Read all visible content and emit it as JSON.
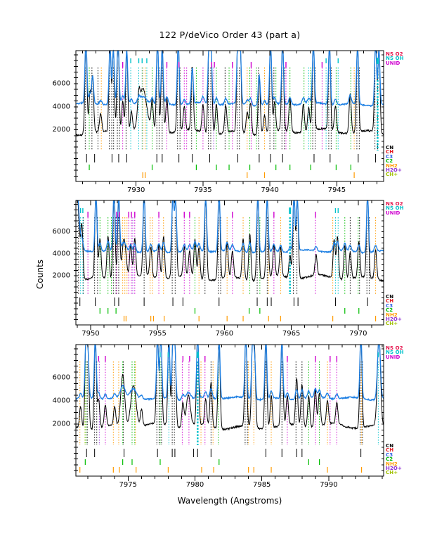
{
  "figure": {
    "title": "122 P/deVico Order 43 (part a)",
    "xlabel": "Wavelength (Angstroms)",
    "ylabel": "Counts"
  },
  "colors": {
    "black_spectrum": "#000000",
    "blue_spectrum": "#1d7fe3",
    "NS_O2": "#e3114a",
    "NS_OH": "#00c2cb",
    "UNID": "#cf00cf",
    "CN": "#000000",
    "CH": "#e31b23",
    "C3": "#2f62e3",
    "C2": "#00bd00",
    "NH2": "#ff9a00",
    "H2O+": "#8f2fd4",
    "CH+": "#a0c000"
  },
  "legend_top": [
    {
      "label": "NS O2",
      "species": "NS_O2"
    },
    {
      "label": "NS OH",
      "species": "NS_OH"
    },
    {
      "label": "UNID",
      "species": "UNID"
    }
  ],
  "legend_bottom": [
    {
      "label": "CN",
      "species": "CN"
    },
    {
      "label": "CH",
      "species": "CH"
    },
    {
      "label": "C3",
      "species": "C3"
    },
    {
      "label": "C2",
      "species": "C2"
    },
    {
      "label": "NH2",
      "species": "NH2"
    },
    {
      "label": "H2O+",
      "species": "H2O+"
    },
    {
      "label": "CH+",
      "species": "CH+"
    }
  ],
  "chart_data": {
    "type": "line",
    "title": "122 P/deVico Order 43 (part a)",
    "xlabel": "Wavelength (Angstroms)",
    "ylabel": "Counts",
    "ylim": [
      -2530,
      8800
    ],
    "y_ticks": [
      2000,
      4000,
      6000
    ],
    "y_minor_step": 500,
    "x_minor_step": 1,
    "baseline_black": 1750,
    "baseline_blue": 4165,
    "panels": [
      {
        "x_range": [
          7925.5,
          7948.5
        ],
        "x_major_ticks": [
          7930,
          7935,
          7940,
          7945
        ],
        "black_peaks": [
          [
            7926.25,
            9800
          ],
          [
            7926.55,
            5200
          ],
          [
            7926.75,
            6500
          ],
          [
            7927.35,
            3300
          ],
          [
            7928.05,
            9300
          ],
          [
            7928.3,
            8800
          ],
          [
            7928.65,
            9800
          ],
          [
            7929.0,
            4600
          ],
          [
            7929.3,
            8800
          ],
          [
            7929.65,
            3600
          ],
          [
            7930.2,
            3400
          ],
          [
            7930.5,
            5300,
            0.28
          ],
          [
            7931.2,
            4200
          ],
          [
            7931.6,
            9500
          ],
          [
            7931.95,
            9000
          ],
          [
            7932.3,
            4700
          ],
          [
            7933.15,
            9600
          ],
          [
            7933.6,
            3800
          ],
          [
            7934.2,
            7200
          ],
          [
            7935.0,
            4200
          ],
          [
            7935.45,
            9300
          ],
          [
            7935.6,
            8800
          ],
          [
            7936.0,
            4400
          ],
          [
            7936.7,
            4100
          ],
          [
            7937.6,
            9600
          ],
          [
            7937.78,
            9200
          ],
          [
            7938.3,
            3600
          ],
          [
            7938.55,
            4500
          ],
          [
            7939.2,
            6800
          ],
          [
            7939.6,
            3400
          ],
          [
            7940.05,
            9500
          ],
          [
            7940.35,
            4200
          ],
          [
            7940.95,
            9400
          ],
          [
            7941.5,
            4600
          ],
          [
            7942.5,
            4200
          ],
          [
            7942.9,
            3800
          ],
          [
            7943.25,
            9500
          ],
          [
            7944.45,
            9300
          ],
          [
            7944.9,
            4000
          ],
          [
            7946.0,
            5200
          ],
          [
            7946.55,
            9200
          ],
          [
            7947.9,
            9700
          ],
          [
            7948.15,
            9000
          ]
        ],
        "lines": {
          "CN": [
            7926.2,
            7926.7,
            7927.15,
            7928.0,
            7928.18,
            7928.32,
            7928.6,
            7928.75,
            7929.25,
            7931.55,
            7931.72,
            7931.95,
            7933.1,
            7933.28,
            7934.15,
            7935.4,
            7935.58,
            7936.65,
            7937.55,
            7937.72,
            7939.15,
            7940.0,
            7940.3,
            7940.9,
            7941.08,
            7943.2,
            7943.38,
            7944.4,
            7944.58,
            7946.5,
            7946.68,
            7947.85,
            7948.05
          ],
          "C2": [
            7926.5,
            7931.2,
            7934.5,
            7936.0,
            7936.95,
            7938.5,
            7939.0,
            7940.45,
            7941.5,
            7942.55,
            7943.05,
            7944.95,
            7946.05
          ],
          "NS_OH": [
            7929.6,
            7930.2,
            7930.45,
            7930.8,
            7942.9,
            7944.2,
            7945.1
          ],
          "NS_OH_thick": [
            7948.05
          ],
          "NH2": [
            7927.4,
            7930.5,
            7930.68,
            7938.3,
            7939.6,
            7946.3
          ],
          "UNID": [
            7929.0,
            7932.3,
            7933.6,
            7933.78,
            7935.0,
            7937.2,
            7938.6,
            7941.2,
            7943.9
          ],
          "H2O+": [
            7935.8
          ]
        },
        "top_marks": {
          "NS_OH": [
            7929.6,
            7930.2,
            7930.45,
            7930.8,
            7944.2,
            7945.1
          ],
          "NS_OH_thick": [
            7948.05
          ],
          "UNID": [
            7929.0,
            7932.3,
            7933.2,
            7935.65,
            7935.85,
            7937.2,
            7938.6,
            7941.2,
            7943.9
          ]
        },
        "bottom_marks": {
          "CN": [
            7926.3,
            7926.9,
            7928.2,
            7928.7,
            7929.3,
            7931.55,
            7931.95,
            7933.2,
            7934.2,
            7935.5,
            7937.6,
            7939.2,
            7940.05,
            7940.95,
            7943.3,
            7944.5,
            7946.6,
            7947.9
          ],
          "C2": [
            7926.5,
            7931.2,
            7934.5,
            7936.0,
            7936.95,
            7938.5,
            7940.45,
            7941.5,
            7943.05,
            7944.95,
            7946.05
          ],
          "NH2": [
            7930.5,
            7930.68,
            7938.3,
            7939.6,
            7946.3
          ]
        }
      },
      {
        "x_range": [
          7948.9,
          7971.9
        ],
        "x_major_ticks": [
          7950,
          7955,
          7960,
          7965,
          7970
        ],
        "black_peaks": [
          [
            7948.95,
            10500,
            0.18
          ],
          [
            7949.35,
            6200
          ],
          [
            7950.4,
            9500
          ],
          [
            7950.7,
            5200
          ],
          [
            7951.3,
            5600
          ],
          [
            7951.75,
            9400
          ],
          [
            7952.1,
            9000
          ],
          [
            7952.5,
            5400,
            0.15
          ],
          [
            7953.0,
            4800
          ],
          [
            7953.3,
            5200
          ],
          [
            7954.0,
            9300
          ],
          [
            7954.5,
            4400
          ],
          [
            7955.1,
            4800
          ],
          [
            7955.45,
            5600
          ],
          [
            7956.15,
            9500
          ],
          [
            7956.35,
            8800
          ],
          [
            7957.0,
            4400
          ],
          [
            7957.4,
            4000
          ],
          [
            7957.8,
            5200
          ],
          [
            7958.1,
            4600
          ],
          [
            7958.6,
            9200
          ],
          [
            7959.6,
            9600
          ],
          [
            7960.2,
            5000
          ],
          [
            7960.6,
            4200
          ],
          [
            7961.4,
            5400
          ],
          [
            7961.9,
            6000
          ],
          [
            7962.5,
            9400
          ],
          [
            7963.2,
            9000
          ],
          [
            7963.7,
            4600
          ],
          [
            7964.2,
            4400
          ],
          [
            7964.9,
            3800
          ],
          [
            7965.2,
            9500
          ],
          [
            7965.45,
            8900
          ],
          [
            7966.85,
            3600
          ],
          [
            7968.2,
            5200
          ],
          [
            7968.45,
            5600
          ],
          [
            7969.0,
            4800
          ],
          [
            7969.4,
            4200
          ],
          [
            7970.05,
            5000
          ],
          [
            7970.7,
            9400
          ],
          [
            7971.3,
            4400
          ]
        ],
        "lines": {
          "CN": [
            7949.1,
            7949.45,
            7950.3,
            7950.52,
            7951.7,
            7951.9,
            7952.1,
            7954.0,
            7956.1,
            7956.32,
            7958.55,
            7959.55,
            7959.72,
            7962.45,
            7963.2,
            7965.15,
            7965.42,
            7969.4,
            7970.1,
            7970.65,
            7970.82
          ],
          "C2": [
            7950.7,
            7951.3,
            7951.55,
            7957.8,
            7961.9,
            7962.65,
            7969.0,
            7970.0
          ],
          "NS_OH": [
            7949.25,
            7949.42,
            7968.3,
            7968.5
          ],
          "NS_OH_thick": [
            7964.9
          ],
          "NH2": [
            7952.4,
            7952.56,
            7952.72,
            7954.45,
            7954.62,
            7955.45,
            7958.1,
            7960.2,
            7961.4,
            7963.3,
            7964.2,
            7968.1,
            7971.3
          ],
          "UNID": [
            7949.8,
            7951.95,
            7952.85,
            7953.05,
            7953.3,
            7955.1,
            7957.0,
            7957.4,
            7960.6,
            7963.7,
            7966.8
          ],
          "H2O+": [
            7953.15
          ]
        },
        "top_marks": {
          "NS_OH": [
            7949.25,
            7949.42,
            7968.3,
            7968.5
          ],
          "NS_OH_thick": [
            7964.9
          ],
          "UNID": [
            7949.8,
            7951.95,
            7952.15,
            7952.85,
            7953.05,
            7953.3,
            7955.1,
            7957.0,
            7957.4,
            7960.6,
            7963.7,
            7966.8
          ]
        },
        "bottom_marks": {
          "CN": [
            7949.2,
            7950.35,
            7951.8,
            7952.1,
            7954.0,
            7956.15,
            7956.9,
            7959.6,
            7962.45,
            7963.2,
            7963.5,
            7965.2,
            7965.5,
            7968.3,
            7970.7
          ],
          "C2": [
            7950.7,
            7951.3,
            7951.9,
            7957.8,
            7961.85,
            7962.65,
            7969.0,
            7970.05
          ],
          "NH2": [
            7952.5,
            7952.65,
            7954.5,
            7954.7,
            7955.5,
            7958.1,
            7960.2,
            7961.4,
            7963.3,
            7964.2,
            7968.1,
            7971.3
          ]
        }
      },
      {
        "x_range": [
          7971.1,
          7994.1
        ],
        "x_major_ticks": [
          7975,
          7980,
          7985,
          7990
        ],
        "black_peaks": [
          [
            7971.45,
            3600
          ],
          [
            7971.85,
            9000
          ],
          [
            7972.0,
            8000
          ],
          [
            7972.55,
            9400
          ],
          [
            7972.8,
            4200
          ],
          [
            7973.3,
            3600
          ],
          [
            7974.0,
            3400
          ],
          [
            7974.6,
            6200,
            0.15
          ],
          [
            7975.4,
            5400,
            0.2
          ],
          [
            7976.0,
            3200
          ],
          [
            7977.2,
            9300
          ],
          [
            7977.45,
            9600
          ],
          [
            7978.05,
            9200
          ],
          [
            7978.35,
            9000
          ],
          [
            7978.5,
            8400
          ],
          [
            7979.1,
            3800
          ],
          [
            7979.5,
            4400,
            0.15
          ],
          [
            7980.2,
            9500
          ],
          [
            7980.8,
            4000
          ],
          [
            7981.2,
            5600
          ],
          [
            7981.8,
            9400
          ],
          [
            7983.8,
            9500
          ],
          [
            7984.3,
            8800
          ],
          [
            7984.45,
            7800
          ],
          [
            7985.3,
            9400
          ],
          [
            7985.7,
            4600
          ],
          [
            7986.5,
            9200
          ],
          [
            7986.9,
            4200
          ],
          [
            7987.6,
            5800
          ],
          [
            7988.0,
            5400
          ],
          [
            7988.5,
            4400
          ],
          [
            7989.0,
            5000
          ],
          [
            7989.3,
            4600
          ],
          [
            7989.9,
            3800
          ],
          [
            7990.6,
            3600
          ],
          [
            7992.4,
            9800
          ],
          [
            7993.75,
            9500,
            0.12
          ]
        ],
        "lines": {
          "CN": [
            7971.95,
            7972.5,
            7972.66,
            7974.65,
            7977.15,
            7977.32,
            7977.5,
            7978.3,
            7978.46,
            7981.2,
            7983.75,
            7983.92,
            7985.3,
            7986.5,
            7987.55,
            7988.0,
            7992.35,
            7992.52
          ],
          "C2": [
            7971.85,
            7974.6,
            7975.3,
            7975.5,
            7977.4,
            7981.75,
            7988.5,
            7989.3
          ],
          "CH+": [
            7971.78
          ],
          "NS_OH": [
            7978.05,
            7993.7
          ],
          "NS_OH_thick": [
            7980.2
          ],
          "NH2": [
            7971.4,
            7973.9,
            7974.3,
            7975.55,
            7980.45,
            7981.35,
            7984.0,
            7984.4,
            7985.7,
            7989.9,
            7992.45
          ],
          "UNID": [
            7973.3,
            7979.05,
            7979.55,
            7980.75,
            7986.9,
            7989.0,
            7990.1,
            7990.6
          ],
          "H2O+": [
            7972.85
          ]
        },
        "top_marks": {
          "NS_OH": [
            7977.4,
            7978.0,
            7993.7
          ],
          "NS_OH_thick": [
            7980.2
          ],
          "UNID": [
            7972.8,
            7973.3,
            7979.1,
            7979.6,
            7980.75,
            7986.9,
            7989.0,
            7990.1,
            7990.6
          ]
        },
        "bottom_marks": {
          "CN": [
            7971.9,
            7972.5,
            7974.7,
            7977.2,
            7978.3,
            7978.5,
            7979.9,
            7980.2,
            7981.2,
            7985.3,
            7986.5,
            7987.6,
            7988.0,
            7992.4
          ],
          "C2": [
            7971.8,
            7974.6,
            7975.3,
            7977.4,
            7981.8,
            7988.5,
            7989.3
          ],
          "NH2": [
            7971.4,
            7973.9,
            7974.35,
            7975.6,
            7978.0,
            7980.5,
            7981.4,
            7984.0,
            7984.4,
            7985.7,
            7989.9,
            7992.45
          ]
        }
      }
    ]
  }
}
